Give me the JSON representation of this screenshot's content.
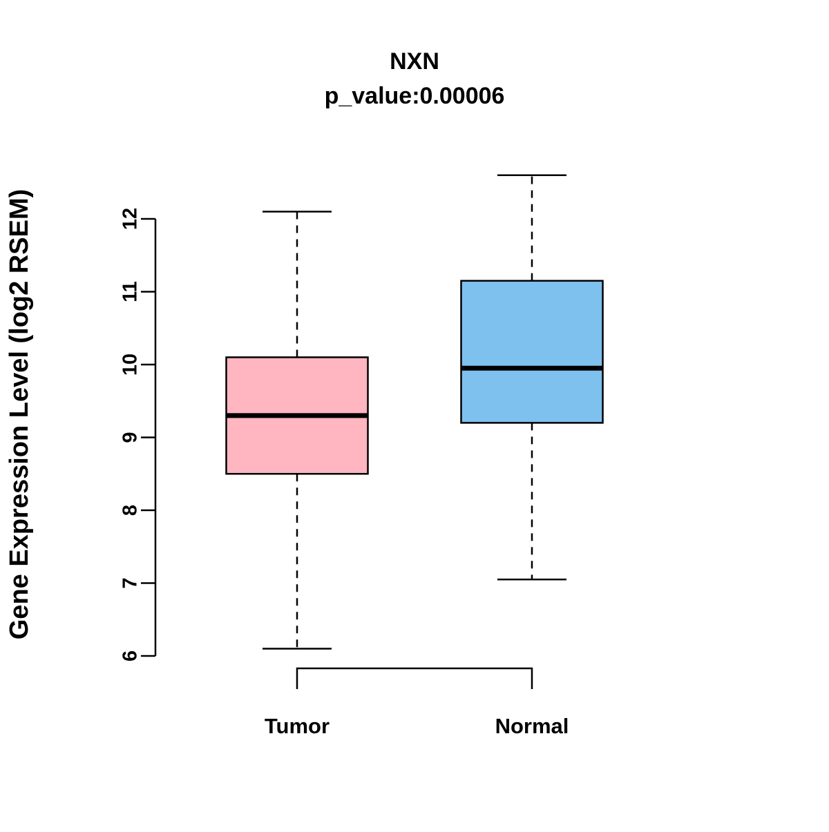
{
  "chart_data": {
    "type": "boxplot",
    "title": "NXN",
    "subtitle": "p_value:0.00006",
    "ylabel": "Gene Expression Level (log2 RSEM)",
    "xlabel": "",
    "ylim": [
      6,
      12.6
    ],
    "yticks": [
      6,
      7,
      8,
      9,
      10,
      11,
      12
    ],
    "grid": false,
    "legend": "none",
    "colors": {
      "tumor": "#FFB6C1",
      "normal": "#7EC0EE",
      "stroke": "#000000"
    },
    "groups": [
      {
        "label": "Tumor",
        "color": "#FFB6C1",
        "min": 6.1,
        "q1": 8.5,
        "median": 9.3,
        "q3": 10.1,
        "max": 12.1
      },
      {
        "label": "Normal",
        "color": "#7EC0EE",
        "min": 7.05,
        "q1": 9.2,
        "median": 9.95,
        "q3": 11.15,
        "max": 12.6
      }
    ]
  }
}
